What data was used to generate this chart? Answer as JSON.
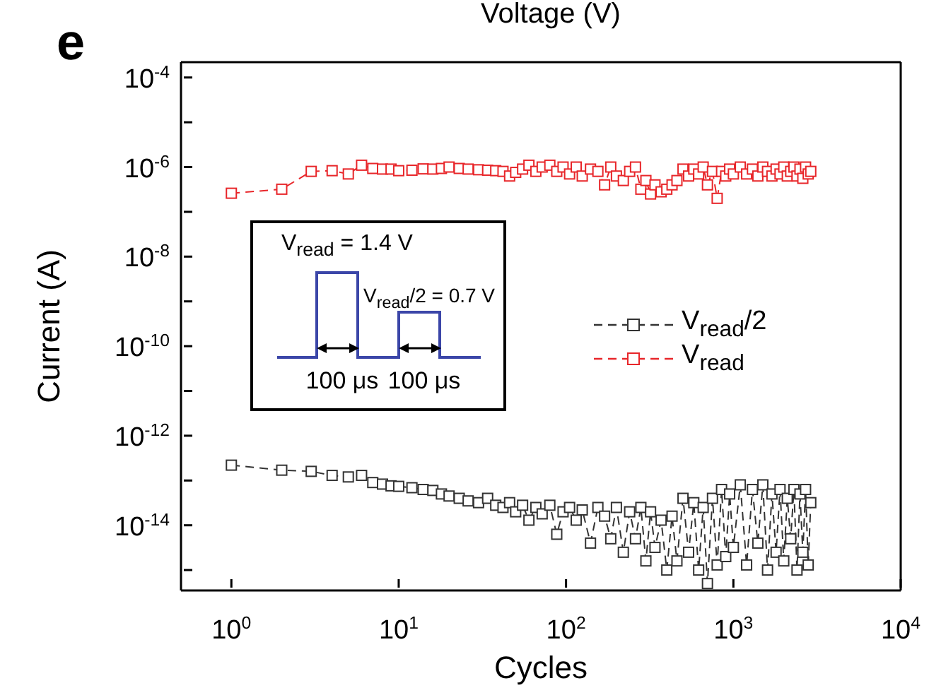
{
  "chart_data": {
    "type": "line",
    "xlabel": "Cycles",
    "ylabel": "Current (A)",
    "annotations": [
      "e",
      "Voltage (V)",
      "V$_{read}$ = 1.4 V",
      "V$_{read}$/2 = 0.7 V",
      "100 μs",
      "100 μs"
    ],
    "x": [
      1,
      2,
      3,
      4,
      5,
      6,
      7,
      8,
      9,
      10,
      12,
      14,
      16,
      18,
      20,
      23,
      26,
      30,
      34,
      38,
      42,
      46,
      50,
      55,
      60,
      66,
      72,
      80,
      88,
      96,
      105,
      115,
      125,
      140,
      155,
      170,
      185,
      200,
      220,
      240,
      260,
      280,
      300,
      320,
      340,
      370,
      400,
      430,
      460,
      500,
      540,
      580,
      620,
      660,
      700,
      750,
      800,
      850,
      900,
      950,
      1000,
      1100,
      1200,
      1300,
      1400,
      1500,
      1600,
      1700,
      1800,
      1900,
      2000,
      2100,
      2200,
      2300,
      2400,
      2500,
      2600,
      2700,
      2800,
      2900
    ],
    "series": [
      {
        "name": "V$_{read}$/2",
        "color": "#333333",
        "values": [
          2.2e-13,
          1.7e-13,
          1.6e-13,
          1.3e-13,
          1.2e-13,
          1.3e-13,
          9e-14,
          8.3e-14,
          7.6e-14,
          7.4e-14,
          6.9e-14,
          6.3e-14,
          6e-14,
          5e-14,
          4.5e-14,
          4e-14,
          3.5e-14,
          3.2e-14,
          4e-14,
          2.8e-14,
          2.5e-14,
          3.2e-14,
          2e-14,
          2.8e-14,
          1.3e-14,
          2.5e-14,
          1.8e-14,
          2.8e-14,
          6.3e-15,
          2e-14,
          2.5e-14,
          1.3e-14,
          2.2e-14,
          4e-15,
          2.5e-14,
          1.6e-14,
          5e-15,
          2.5e-14,
          2.5e-15,
          2e-14,
          5e-15,
          2.5e-14,
          1.6e-15,
          2e-14,
          3.2e-15,
          1.3e-14,
          1e-15,
          1.6e-14,
          1.6e-15,
          4e-14,
          2.5e-15,
          3.2e-14,
          1e-15,
          2.5e-14,
          5e-16,
          4e-14,
          1.3e-15,
          6.3e-14,
          2e-15,
          5e-14,
          3.2e-15,
          8e-14,
          1.3e-15,
          6.3e-14,
          4e-15,
          8e-14,
          1e-15,
          5e-14,
          2.5e-15,
          6.3e-14,
          1.6e-15,
          4e-14,
          5e-15,
          6.3e-14,
          1e-15,
          5e-14,
          2.5e-15,
          6.3e-14,
          1.3e-15,
          3.2e-14
        ]
      },
      {
        "name": "V$_{read}$",
        "color": "#e8262a",
        "values": [
          2.6e-07,
          3.2e-07,
          8e-07,
          8.3e-07,
          7e-07,
          1.1e-06,
          9.3e-07,
          9e-07,
          9e-07,
          8.3e-07,
          8.5e-07,
          9.1e-07,
          9e-07,
          9.3e-07,
          1e-06,
          9.3e-07,
          9e-07,
          8.7e-07,
          8.5e-07,
          8.3e-07,
          8e-07,
          6.3e-07,
          7.6e-07,
          9e-07,
          1.1e-06,
          8e-07,
          1e-06,
          1.1e-06,
          8e-07,
          1e-06,
          7e-07,
          1e-06,
          6.3e-07,
          9e-07,
          8e-07,
          4e-07,
          1e-06,
          6.3e-07,
          5e-07,
          8e-07,
          1e-06,
          3.2e-07,
          5e-07,
          2.5e-07,
          4e-07,
          2.8e-07,
          3.2e-07,
          4e-07,
          5e-07,
          9e-07,
          6.3e-07,
          9e-07,
          7e-07,
          1e-06,
          4e-07,
          8e-07,
          2e-07,
          8e-07,
          6.3e-07,
          9e-07,
          7e-07,
          1e-06,
          7e-07,
          9e-07,
          6.3e-07,
          1e-06,
          8e-07,
          6.3e-07,
          9e-07,
          7e-07,
          1e-06,
          6.3e-07,
          8e-07,
          1e-06,
          6.3e-07,
          9e-07,
          5.6e-07,
          1e-06,
          7e-07,
          8e-07
        ]
      }
    ],
    "xlim": [
      0.5,
      10000
    ],
    "xticks": [
      {
        "value": 1,
        "label": "10$^{0}$"
      },
      {
        "value": 10,
        "label": "10$^{1}$"
      },
      {
        "value": 100,
        "label": "10$^{2}$"
      },
      {
        "value": 1000,
        "label": "10$^{3}$"
      },
      {
        "value": 10000,
        "label": "10$^{4}$"
      }
    ],
    "ylim": [
      3.5e-16,
      0.00022
    ],
    "yticks": [
      {
        "value": 1e-15,
        "label": null
      },
      {
        "value": 1e-14,
        "label": "10$^{-14}$"
      },
      {
        "value": 1e-13,
        "label": null
      },
      {
        "value": 1e-12,
        "label": "10$^{-12}$"
      },
      {
        "value": 1e-11,
        "label": null
      },
      {
        "value": 1e-10,
        "label": "10$^{-10}$"
      },
      {
        "value": 1e-09,
        "label": null
      },
      {
        "value": 1e-08,
        "label": "10$^{-8}$"
      },
      {
        "value": 1e-07,
        "label": null
      },
      {
        "value": 1e-06,
        "label": "10$^{-6}$"
      },
      {
        "value": 1e-05,
        "label": null
      },
      {
        "value": 0.0001,
        "label": "10$^{-4}$"
      }
    ],
    "log": "xy",
    "legend": "right",
    "marker": "square",
    "line_style": "dashed"
  }
}
